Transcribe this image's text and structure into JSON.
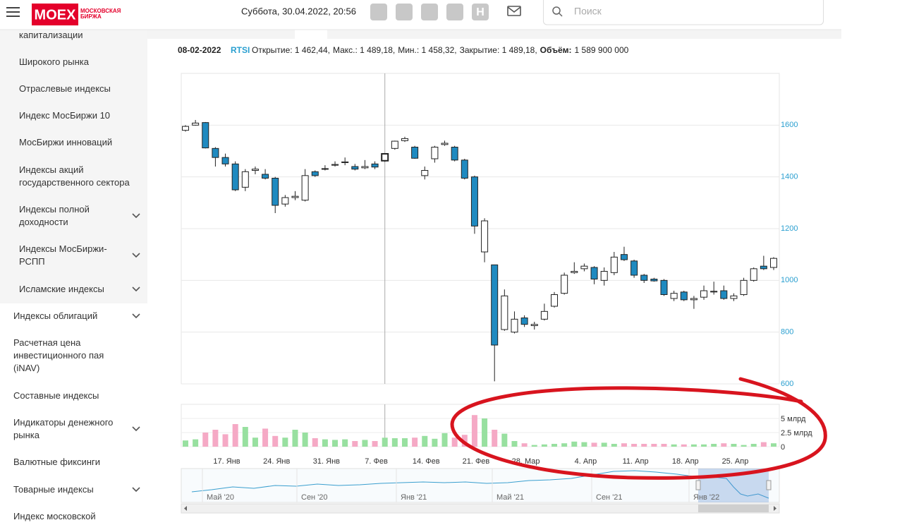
{
  "header": {
    "logo": "MOEX",
    "logo_sub": "МОСКОВСКАЯ\nБИРЖА",
    "datetime": "Суббота, 30.04.2022, 20:56",
    "icon_letter": "Н",
    "search_placeholder": "Поиск"
  },
  "sidebar": {
    "items": [
      "капитализации",
      "Широкого рынка",
      "Отраслевые индексы",
      "Индекс МосБиржи 10",
      "МосБиржи инноваций",
      "Индексы акций\nгосударственного сектора",
      "Индексы полной\nдоходности",
      "Индексы МосБиржи-\nРСПП",
      "Исламские индексы",
      "Индексы облигаций",
      "Расчетная цена\nинвестиционного пая\n(iNAV)",
      "Составные индексы",
      "Индикаторы денежного\nрынка",
      "Валютные фиксинги",
      "Товарные индексы",
      "Индекс московской"
    ]
  },
  "info": {
    "date": "08-02-2022",
    "ticker": "RTSI",
    "fields": [
      "Открытие: 1 462,44,",
      "Макс.: 1 489,18,",
      "Мин.: 1 458,32,",
      "Закрытие: 1 489,18,"
    ],
    "volume_label": "Объём:",
    "volume_value": "1 589 900 000"
  },
  "chart_data": {
    "type": "candlestick",
    "categories": [
      null,
      null,
      null,
      null,
      "17. Янв",
      null,
      null,
      null,
      null,
      "24. Янв",
      null,
      null,
      null,
      null,
      "31. Янв",
      null,
      null,
      null,
      null,
      "7. Фев",
      null,
      null,
      null,
      null,
      "14. Фев",
      null,
      null,
      null,
      null,
      "21. Фев",
      null,
      null,
      null,
      null,
      "28. Мар",
      null,
      null,
      null,
      null,
      null,
      "4. Апр",
      null,
      null,
      null,
      null,
      "11. Апр",
      null,
      null,
      null,
      null,
      "18. Апр",
      null,
      null,
      null,
      null,
      "25. Апр",
      null,
      null,
      null,
      null
    ],
    "open": [
      1580,
      1600,
      1610,
      1510,
      1475,
      1450,
      1360,
      1425,
      1410,
      1395,
      1295,
      1320,
      1310,
      1420,
      1430,
      1445,
      1455,
      1440,
      1435,
      1450,
      1462.44,
      1510,
      1540,
      1515,
      1405,
      1470,
      1525,
      1515,
      1465,
      1400,
      1110,
      1060,
      810,
      800,
      855,
      825,
      850,
      900,
      950,
      1030,
      1045,
      1050,
      1000,
      1030,
      1100,
      1075,
      1020,
      1005,
      1000,
      930,
      955,
      925,
      935,
      955,
      960,
      930,
      945,
      1000,
      1055,
      1050
    ],
    "high": [
      1600,
      1620,
      1612,
      1515,
      1490,
      1460,
      1430,
      1440,
      1430,
      1400,
      1330,
      1345,
      1430,
      1425,
      1445,
      1460,
      1475,
      1450,
      1465,
      1460,
      1489.18,
      1540,
      1555,
      1520,
      1440,
      1520,
      1540,
      1520,
      1470,
      1405,
      1240,
      1060,
      965,
      880,
      865,
      840,
      910,
      955,
      1030,
      1070,
      1065,
      1055,
      1050,
      1110,
      1130,
      1080,
      1025,
      1010,
      1005,
      960,
      960,
      940,
      980,
      995,
      980,
      950,
      1010,
      1050,
      1095,
      1090
    ],
    "low": [
      1575,
      1598,
      1510,
      1440,
      1440,
      1345,
      1345,
      1410,
      1390,
      1260,
      1285,
      1310,
      1305,
      1400,
      1425,
      1440,
      1445,
      1425,
      1430,
      1430,
      1458.32,
      1505,
      1535,
      1470,
      1390,
      1455,
      1520,
      1460,
      1390,
      1180,
      1070,
      610,
      805,
      795,
      820,
      810,
      845,
      895,
      945,
      1025,
      1035,
      985,
      980,
      1020,
      1075,
      1010,
      990,
      995,
      940,
      920,
      920,
      890,
      925,
      945,
      925,
      920,
      940,
      995,
      1040,
      1040
    ],
    "close": [
      1595,
      1608,
      1512,
      1475,
      1450,
      1350,
      1420,
      1430,
      1395,
      1290,
      1320,
      1325,
      1405,
      1405,
      1432,
      1448,
      1458,
      1430,
      1440,
      1438,
      1489.18,
      1538,
      1548,
      1472,
      1425,
      1515,
      1530,
      1465,
      1395,
      1210,
      1230,
      750,
      940,
      850,
      830,
      830,
      880,
      945,
      1020,
      1035,
      1055,
      1005,
      1035,
      1090,
      1080,
      1020,
      1000,
      998,
      945,
      950,
      925,
      930,
      960,
      958,
      930,
      940,
      1000,
      1045,
      1045,
      1085
    ],
    "ylim": [
      600,
      1800
    ],
    "yticks": [
      600,
      800,
      1000,
      1200,
      1400,
      1600
    ],
    "up_color": "#ffffff",
    "down_color": "#1f8ac0",
    "selected": 20,
    "volume": {
      "values": [
        1100000000,
        1300000000,
        2500000000,
        3000000000,
        2200000000,
        4000000000,
        3500000000,
        1600000000,
        3200000000,
        1900000000,
        1600000000,
        3000000000,
        2500000000,
        1500000000,
        1300000000,
        1200000000,
        1300000000,
        1000000000,
        1200000000,
        1000000000,
        1589900000,
        1500000000,
        1500000000,
        1600000000,
        1900000000,
        1400000000,
        2400000000,
        1600000000,
        2100000000,
        5600000000,
        5000000000,
        3000000000,
        2300000000,
        1000000000,
        600000000,
        300000000,
        400000000,
        500000000,
        600000000,
        900000000,
        800000000,
        700000000,
        700000000,
        500000000,
        600000000,
        500000000,
        500000000,
        500000000,
        500000000,
        400000000,
        400000000,
        400000000,
        400000000,
        500000000,
        600000000,
        500000000,
        300000000,
        500000000,
        800000000,
        600000000
      ],
      "ylim": [
        0,
        7500000000
      ],
      "yticks": [
        0,
        {
          "value": 2500000000,
          "label": "2.5 млрд"
        },
        {
          "value": 5000000000,
          "label": "5 млрд"
        }
      ],
      "up_color": "#98e0a0",
      "down_color": "#f5a9c5"
    },
    "navigator_labels": [
      "Май '20",
      "Сен '20",
      "Янв '21",
      "Май '21",
      "Сен '21",
      "Янв '22"
    ]
  }
}
